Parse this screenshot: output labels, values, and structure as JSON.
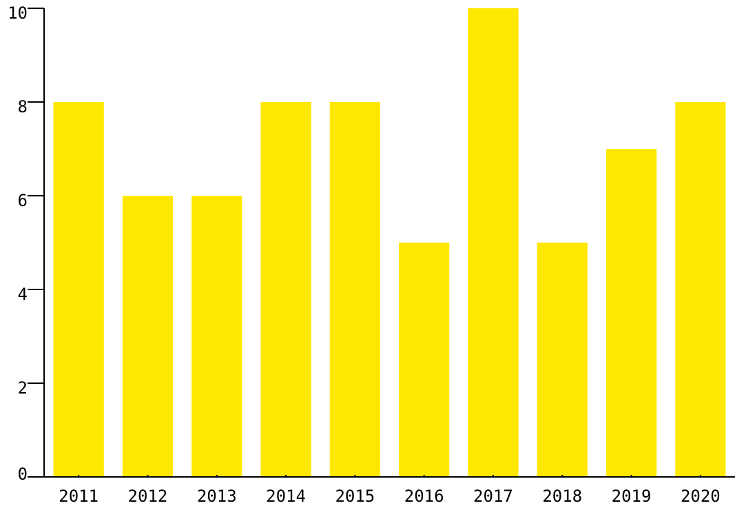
{
  "chart_data": {
    "type": "bar",
    "categories": [
      "2011",
      "2012",
      "2013",
      "2014",
      "2015",
      "2016",
      "2017",
      "2018",
      "2019",
      "2020"
    ],
    "values": [
      8,
      6,
      6,
      8,
      8,
      5,
      10,
      5,
      7,
      8
    ],
    "title": "",
    "xlabel": "",
    "ylabel": "",
    "ylim": [
      0,
      10
    ],
    "yticks": [
      0,
      2,
      4,
      6,
      8,
      10
    ],
    "grid": false,
    "legend": "none",
    "bar_color": "#FFE800",
    "axis_color": "#000000"
  }
}
